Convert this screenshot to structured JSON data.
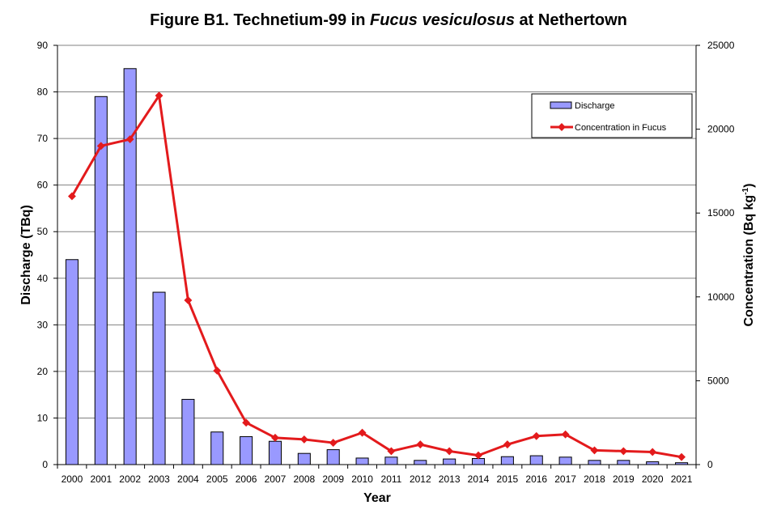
{
  "chart_data": {
    "type": "bar",
    "title": {
      "prefix": "Figure B1. Technetium-99 in ",
      "italic": "Fucus vesiculosus",
      "suffix": " at Nethertown"
    },
    "xlabel": "Year",
    "ylabel": "Discharge (TBq)",
    "y2label": {
      "main": "Concentration (Bq kg",
      "sup": "-1",
      "close": ")"
    },
    "categories": [
      "2000",
      "2001",
      "2002",
      "2003",
      "2004",
      "2005",
      "2006",
      "2007",
      "2008",
      "2009",
      "2010",
      "2011",
      "2012",
      "2013",
      "2014",
      "2015",
      "2016",
      "2017",
      "2018",
      "2019",
      "2020",
      "2021"
    ],
    "ylim": [
      0,
      90
    ],
    "yticks": [
      "0",
      "10",
      "20",
      "30",
      "40",
      "50",
      "60",
      "70",
      "80",
      "90"
    ],
    "y2lim": [
      0,
      25000
    ],
    "y2ticks": [
      "0",
      "5000",
      "10000",
      "15000",
      "20000",
      "25000"
    ],
    "grid": true,
    "legend_position": "top-right",
    "series": [
      {
        "name": "Discharge",
        "type": "bar",
        "axis": "left",
        "color": "#9999ff",
        "values": [
          44,
          79,
          85,
          37,
          14,
          7,
          6,
          5,
          2.4,
          3.2,
          1.4,
          1.6,
          0.9,
          1.2,
          1.3,
          1.7,
          1.9,
          1.6,
          0.9,
          0.9,
          0.6,
          0.4
        ]
      },
      {
        "name": "Concentration in Fucus",
        "type": "line",
        "axis": "right",
        "color": "#e31a1c",
        "values": [
          16000,
          19000,
          19400,
          22000,
          9800,
          5600,
          2500,
          1600,
          1500,
          1300,
          1900,
          800,
          1200,
          800,
          550,
          1200,
          1700,
          1800,
          850,
          800,
          750,
          450
        ]
      }
    ]
  }
}
